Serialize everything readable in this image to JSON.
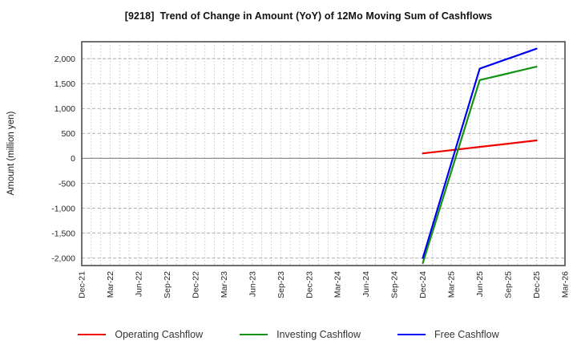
{
  "window": {
    "title": "[9218]  Trend of Change in Amount (YoY) of 12Mo Moving Sum of Cashflows"
  },
  "chart_data": {
    "type": "line",
    "title": "[9218]  Trend of Change in Amount (YoY) of 12Mo Moving Sum of Cashflows",
    "xlabel": "",
    "ylabel": "Amount (million yen)",
    "x_tick_labels": [
      "Dec-21",
      "Mar-22",
      "Jun-22",
      "Sep-22",
      "Dec-22",
      "Mar-23",
      "Jun-23",
      "Sep-23",
      "Dec-23",
      "Mar-24",
      "Jun-24",
      "Sep-24",
      "Dec-24",
      "Mar-25",
      "Jun-25",
      "Sep-25",
      "Dec-25",
      "Mar-26"
    ],
    "y_tick_values": [
      2000,
      1500,
      1000,
      500,
      0,
      -500,
      -1000,
      -1500,
      -2000
    ],
    "ylim": [
      -2150,
      2340
    ],
    "grid": true,
    "minor_vertical_grid_per_quarter": 3,
    "legend_position": "bottom",
    "x": [
      "Dec-24",
      "Mar-25",
      "Jun-25",
      "Sep-25",
      "Dec-25"
    ],
    "series": [
      {
        "name": "Operating Cashflow",
        "color": "#f10000",
        "values": [
          100,
          165,
          230,
          295,
          360
        ]
      },
      {
        "name": "Investing Cashflow",
        "color": "#129312",
        "values": [
          -2100,
          -265,
          1570,
          1705,
          1840
        ]
      },
      {
        "name": "Free Cashflow",
        "color": "#0000f1",
        "values": [
          -2000,
          -100,
          1800,
          2000,
          2200
        ]
      }
    ],
    "colors": {
      "axis_border": "#4d4d4d",
      "grid_major": "#a6a6a6",
      "grid_minor": "#c4c4c4",
      "zero_line": "#8c8c8c",
      "tick_label": "#262626",
      "title": "#111111",
      "legend_text": "#333333"
    }
  }
}
